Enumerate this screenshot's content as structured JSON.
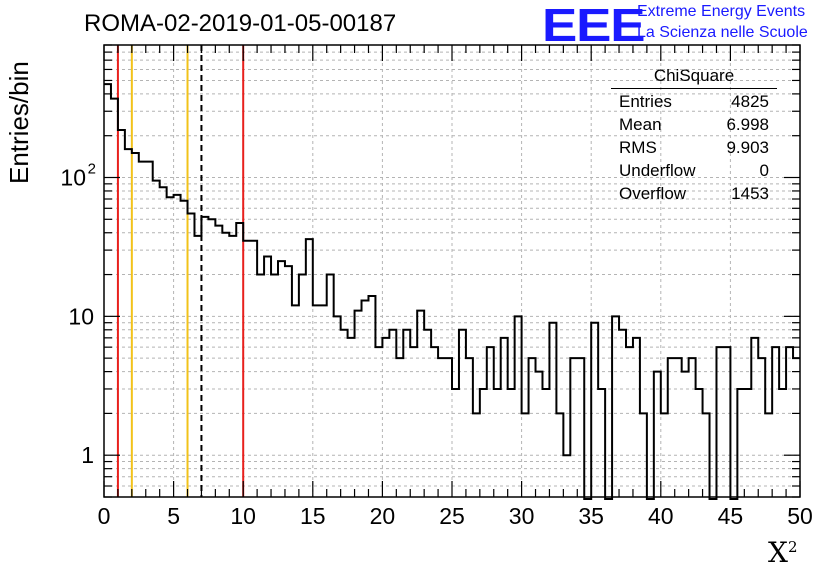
{
  "title": "ROMA-02-2019-01-05-00187",
  "logo": {
    "big": "EEE",
    "line1": "Extreme Energy Events",
    "line2": "La Scienza nelle Scuole",
    "color": "#1a1aff"
  },
  "axes": {
    "ylabel": "Entries/bin",
    "xlabel": "X",
    "xlabel_sup": "2"
  },
  "stats": {
    "title": "ChiSquare",
    "rows": [
      {
        "label": "Entries",
        "value": "4825"
      },
      {
        "label": "Mean",
        "value": "6.998"
      },
      {
        "label": "RMS",
        "value": "9.903"
      },
      {
        "label": "Underflow",
        "value": "0"
      },
      {
        "label": "Overflow",
        "value": "1453"
      }
    ]
  },
  "chart_data": {
    "type": "histogram",
    "title": "ROMA-02-2019-01-05-00187",
    "xlabel": "X²",
    "ylabel": "Entries/bin",
    "yscale": "log",
    "xlim": [
      0,
      50
    ],
    "ylim": [
      0.5,
      900
    ],
    "bin_width": 0.5,
    "x_ticks": [
      "0",
      "5",
      "10",
      "15",
      "20",
      "25",
      "30",
      "35",
      "40",
      "45",
      "50"
    ],
    "y_ticks": [
      {
        "value": 1,
        "label": "1"
      },
      {
        "value": 10,
        "label": "10"
      },
      {
        "value": 100,
        "label": "10",
        "sup": "2"
      }
    ],
    "grid": true,
    "values": [
      470,
      370,
      220,
      160,
      150,
      130,
      130,
      95,
      85,
      72,
      75,
      68,
      55,
      38,
      52,
      50,
      45,
      40,
      38,
      47,
      35,
      35,
      20,
      27,
      20,
      25,
      23,
      12,
      20,
      36,
      12,
      12,
      20,
      10,
      8,
      7,
      11,
      13,
      14,
      6,
      7,
      8,
      5,
      8,
      6,
      11,
      8,
      6,
      5,
      5,
      3,
      8,
      5,
      2,
      3,
      6,
      3,
      7,
      3,
      10,
      2,
      5,
      4,
      3,
      9,
      2,
      1,
      5,
      5,
      0,
      9,
      3,
      0,
      10,
      8,
      6,
      7,
      2,
      0,
      4,
      2,
      5,
      5,
      4,
      5,
      3,
      2,
      0,
      6,
      6,
      0,
      3,
      3,
      7,
      5,
      2,
      6,
      3,
      6,
      5
    ],
    "vertical_lines": [
      {
        "x": 1,
        "color": "#e8201c",
        "style": "solid"
      },
      {
        "x": 2,
        "color": "#f2c21a",
        "style": "solid"
      },
      {
        "x": 6,
        "color": "#f2c21a",
        "style": "solid"
      },
      {
        "x": 7,
        "color": "#000000",
        "style": "dashed"
      },
      {
        "x": 10,
        "color": "#e8201c",
        "style": "solid"
      }
    ]
  }
}
